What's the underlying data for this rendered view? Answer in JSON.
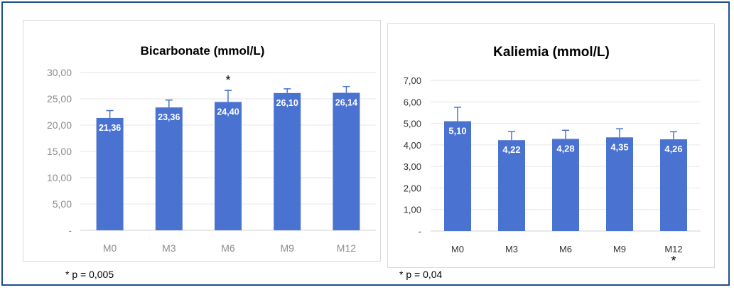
{
  "charts": [
    {
      "title": "Bicarbonate (mmol/L)",
      "footnote": "* p = 0,005",
      "y_ticks": [
        "-",
        "5,00",
        "10,00",
        "15,00",
        "20,00",
        "25,00",
        "30,00"
      ]
    },
    {
      "title": "Kaliemia  (mmol/L)",
      "footnote": "* p = 0,04",
      "y_ticks": [
        "-",
        "1,00",
        "2,00",
        "3,00",
        "4,00",
        "5,00",
        "6,00",
        "7,00"
      ]
    }
  ],
  "chart_data": [
    {
      "type": "bar",
      "title": "Bicarbonate (mmol/L)",
      "categories": [
        "M0",
        "M3",
        "M6",
        "M9",
        "M12"
      ],
      "values": [
        21.36,
        23.36,
        24.4,
        26.1,
        26.14
      ],
      "value_labels": [
        "21,36",
        "23,36",
        "24,40",
        "26,10",
        "26,14"
      ],
      "error_plus": [
        1.4,
        1.4,
        2.2,
        0.8,
        1.2
      ],
      "significance_markers": [
        "",
        "",
        "*",
        "",
        ""
      ],
      "ylim": [
        0,
        30
      ],
      "grid": true,
      "bar_color": "#4a72d0",
      "label_color": "#ffffff"
    },
    {
      "type": "bar",
      "title": "Kaliemia  (mmol/L)",
      "categories": [
        "M0",
        "M3",
        "M6",
        "M9",
        "M12"
      ],
      "values": [
        5.1,
        4.22,
        4.28,
        4.35,
        4.26
      ],
      "value_labels": [
        "5,10",
        "4,22",
        "4,28",
        "4,35",
        "4,26"
      ],
      "error_plus": [
        0.65,
        0.4,
        0.4,
        0.4,
        0.35
      ],
      "significance_markers": [
        "",
        "",
        "",
        "",
        "*"
      ],
      "ylim": [
        0,
        7
      ],
      "grid": true,
      "bar_color": "#4a72d0",
      "label_color": "#ffffff"
    }
  ]
}
